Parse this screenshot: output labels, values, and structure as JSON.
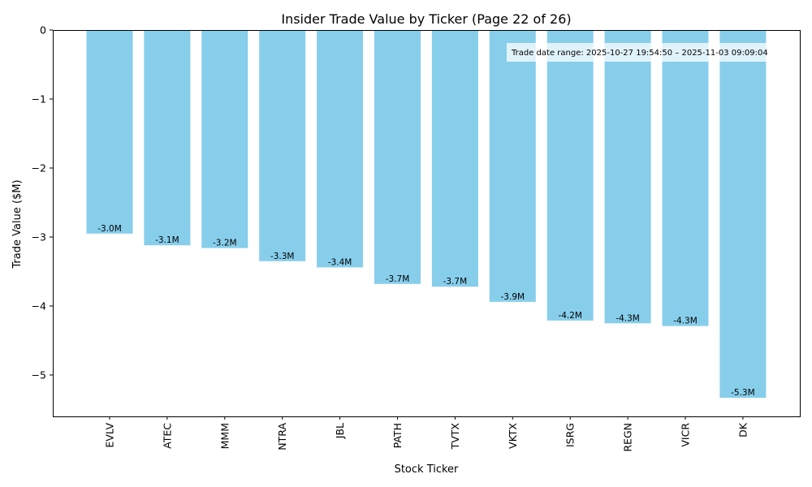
{
  "chart_data": {
    "type": "bar",
    "title": "Insider Trade Value by Ticker (Page 22 of 26)",
    "xlabel": "Stock Ticker",
    "ylabel": "Trade Value ($M)",
    "categories": [
      "EVLV",
      "ATEC",
      "MMM",
      "NTRA",
      "JBL",
      "PATH",
      "TVTX",
      "VKTX",
      "ISRG",
      "REGN",
      "VICR",
      "DK"
    ],
    "values": [
      -2.95,
      -3.12,
      -3.16,
      -3.35,
      -3.44,
      -3.68,
      -3.72,
      -3.94,
      -4.21,
      -4.25,
      -4.29,
      -5.33
    ],
    "data_labels": [
      "-3.0M",
      "-3.1M",
      "-3.2M",
      "-3.3M",
      "-3.4M",
      "-3.7M",
      "-3.7M",
      "-3.9M",
      "-4.2M",
      "-4.3M",
      "-4.3M",
      "-5.3M"
    ],
    "ylim": [
      -5.6,
      0
    ],
    "yticks": [
      0,
      -1,
      -2,
      -3,
      -4,
      -5
    ],
    "ytick_labels": [
      "0",
      "−1",
      "−2",
      "−3",
      "−4",
      "−5"
    ],
    "bar_color": "#87ceeb",
    "grid": false,
    "annotation": "Trade date range: 2025-10-27 19:54:50 – 2025-11-03 09:09:04",
    "annotation_placement": "top-right"
  }
}
